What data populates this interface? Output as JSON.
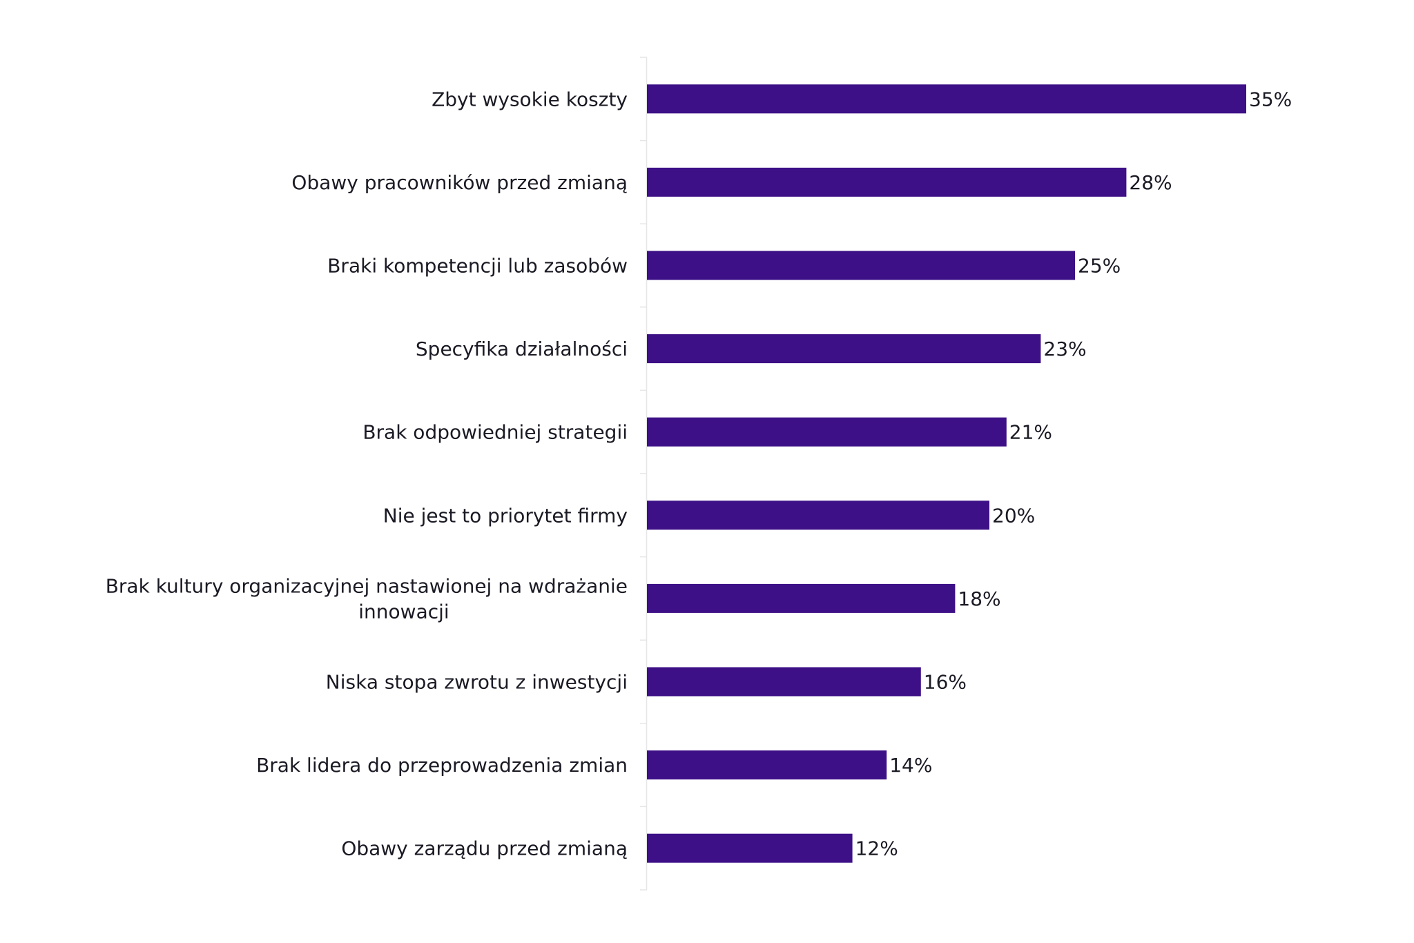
{
  "chart_data": {
    "type": "bar",
    "orientation": "horizontal",
    "title": "",
    "xlabel": "",
    "ylabel": "",
    "categories": [
      "Zbyt wysokie koszty",
      "Obawy pracowników przed zmianą",
      "Braki kompetencji lub zasobów",
      "Specyfika działalności",
      "Brak odpowiedniej strategii",
      "Nie jest to priorytet firmy",
      "Brak kultury organizacyjnej nastawionej na wdrażanie innowacji",
      "Niska stopa zwrotu z inwestycji",
      "Brak lidera do przeprowadzenia zmian",
      "Obawy zarządu przed zmianą"
    ],
    "category_lines": [
      [
        "Zbyt wysokie koszty"
      ],
      [
        "Obawy pracowników przed zmianą"
      ],
      [
        "Braki kompetencji lub zasobów"
      ],
      [
        "Specyfika działalności"
      ],
      [
        "Brak odpowiedniej strategii"
      ],
      [
        "Nie jest to priorytet firmy"
      ],
      [
        "Brak kultury organizacyjnej nastawionej na wdrażanie",
        "innowacji"
      ],
      [
        "Niska stopa zwrotu z inwestycji"
      ],
      [
        "Brak lidera do przeprowadzenia zmian"
      ],
      [
        "Obawy zarządu przed zmianą"
      ]
    ],
    "values": [
      35,
      28,
      25,
      23,
      21,
      20,
      18,
      16,
      14,
      12
    ],
    "value_labels": [
      "35%",
      "28%",
      "25%",
      "23%",
      "21%",
      "20%",
      "18%",
      "16%",
      "14%",
      "12%"
    ],
    "unit": "%",
    "xlim": [
      0,
      35
    ],
    "grid": false,
    "legend": "none",
    "bar_color": "#3d1087",
    "axis_color": "#e6e6e6"
  }
}
